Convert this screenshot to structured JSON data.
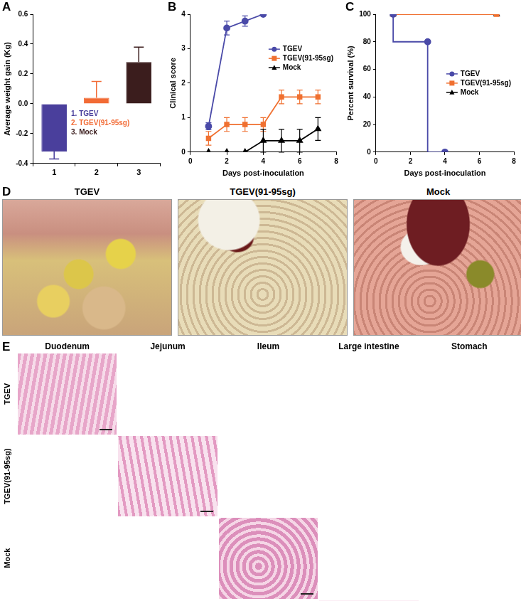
{
  "chart_data": [
    {
      "label": "A",
      "type": "bar",
      "categories": [
        "1",
        "2",
        "3"
      ],
      "values": [
        -0.32,
        0.04,
        0.28
      ],
      "errors": [
        0.05,
        0.11,
        0.1
      ],
      "colors": [
        "#4a3f9c",
        "#f26b35",
        "#3b1d1d"
      ],
      "annotations": [
        "1. TGEV",
        "2. TGEV(91-95sg)",
        "3. Mock"
      ],
      "y_label": "Average weight gain (Kg)",
      "ylim": [
        -0.4,
        0.6
      ],
      "yticks": [
        -0.4,
        -0.2,
        {
          "value": 0,
          "label": "0.0"
        },
        0.2,
        0.4,
        0.6
      ],
      "grid": false
    },
    {
      "label": "B",
      "type": "line",
      "x": [
        1,
        2,
        3,
        4,
        5,
        6,
        7
      ],
      "x_label": "Days post-inoculation",
      "y_label": "Clinical score",
      "xlim": [
        0,
        8
      ],
      "xticks": [
        0,
        2,
        4,
        6,
        8
      ],
      "ylim": [
        0,
        4
      ],
      "yticks": [
        0,
        1,
        2,
        3,
        4
      ],
      "grid": false,
      "legend": "upper right",
      "series": [
        {
          "name": "TGEV",
          "color": "#4a4aa8",
          "marker": "circle",
          "values": [
            0.75,
            3.6,
            3.8,
            4.0,
            null,
            null,
            null
          ],
          "errors": [
            0.1,
            0.2,
            0.15,
            0,
            null,
            null,
            null
          ]
        },
        {
          "name": "TGEV(91-95sg)",
          "color": "#f07030",
          "marker": "square",
          "values": [
            0.4,
            0.8,
            0.8,
            0.8,
            1.6,
            1.6,
            1.6
          ],
          "errors": [
            0.2,
            0.2,
            0.2,
            0.2,
            0.2,
            0.2,
            0.2
          ]
        },
        {
          "name": "Mock",
          "color": "#000000",
          "marker": "triangle",
          "values": [
            0,
            0,
            0,
            0.33,
            0.33,
            0.33,
            0.67
          ],
          "errors": [
            0,
            0,
            0,
            0.33,
            0.33,
            0.33,
            0.33
          ]
        }
      ]
    },
    {
      "label": "C",
      "type": "line",
      "x": [
        1,
        3,
        4,
        7
      ],
      "x_label": "Days post-inoculation",
      "y_label": "Percent survival (%)",
      "xlim": [
        0,
        8
      ],
      "xticks": [
        0,
        2,
        4,
        6,
        8
      ],
      "ylim": [
        0,
        100
      ],
      "yticks": [
        0,
        20,
        40,
        60,
        80,
        100
      ],
      "grid": false,
      "legend": "right",
      "series": [
        {
          "name": "TGEV",
          "color": "#4a4aa8",
          "marker": "circle",
          "line_style": "step",
          "values": [
            100,
            80,
            0,
            null
          ]
        },
        {
          "name": "TGEV(91-95sg)",
          "color": "#f07030",
          "marker": "square",
          "line_style": "step",
          "values": [
            100,
            null,
            null,
            100
          ]
        },
        {
          "name": "Mock",
          "color": "#000000",
          "marker": "triangle",
          "line_style": "step",
          "values": [
            100,
            null,
            null,
            100
          ]
        }
      ]
    }
  ],
  "photos": {
    "label": "D",
    "titles": [
      "TGEV",
      "TGEV(91-95sg)",
      "Mock"
    ]
  },
  "histology": {
    "label": "E",
    "columns": [
      "Duodenum",
      "Jejunum",
      "Ileum",
      "Large intestine",
      "Stomach"
    ],
    "rows": [
      "TGEV",
      "TGEV(91-95sg)",
      "Mock"
    ]
  }
}
